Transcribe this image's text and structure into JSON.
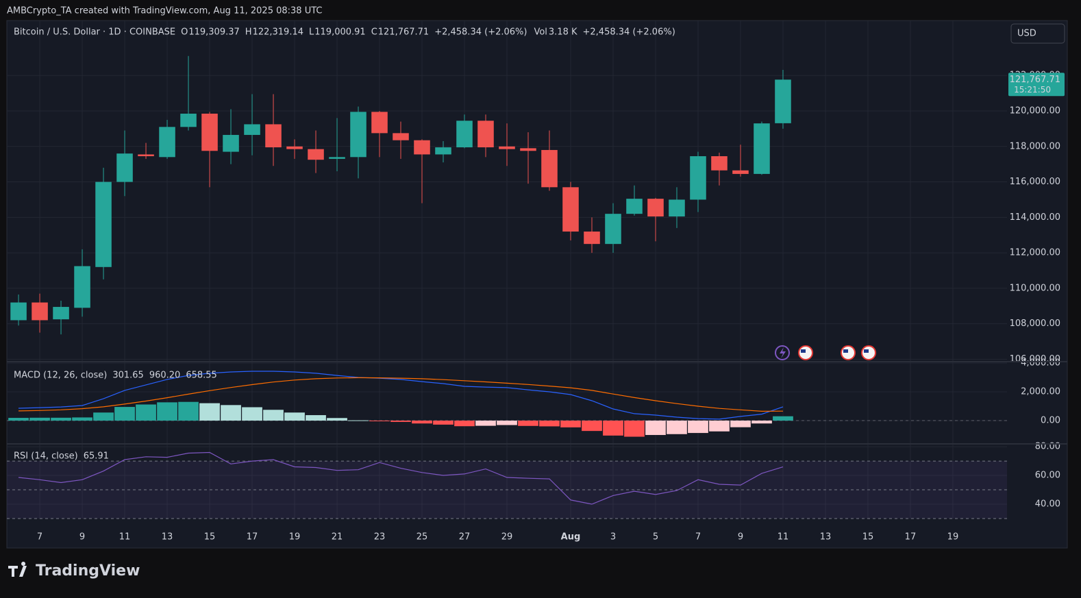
{
  "attribution": "AMBCrypto_TA created with TradingView.com, Aug 11, 2025 08:38 UTC",
  "currency_button": "USD",
  "footer_logo": "TradingView",
  "chart_data": [
    {
      "type": "candlestick",
      "title": "Bitcoin / U.S. Dollar · 1D · COINBASE",
      "ohlc_labels": [
        {
          "key": "O",
          "value": "119,309.37"
        },
        {
          "key": "H",
          "value": "122,319.14"
        },
        {
          "key": "L",
          "value": "119,000.91"
        },
        {
          "key": "C",
          "value": "121,767.71"
        }
      ],
      "change_label": "+2,458.34 (+2.06%)",
      "volume_key": "Vol",
      "volume_value": "3.18 K",
      "volume_change": "+2,458.34 (+2.06%)",
      "open": [
        108200,
        109200,
        108250,
        108900,
        111200,
        116000,
        117550,
        117400,
        119100,
        119850,
        117700,
        118650,
        119250,
        118000,
        117850,
        117300,
        117400,
        119950,
        118750,
        118350,
        117550,
        117950,
        119450,
        118000,
        117900,
        117800,
        115700,
        113200,
        112500,
        114200,
        115050,
        114050,
        115000,
        117450,
        116650,
        116450,
        119309.37
      ],
      "high": [
        109650,
        109700,
        109300,
        112200,
        116800,
        118900,
        118200,
        119500,
        123100,
        119950,
        120100,
        120950,
        120950,
        118400,
        118900,
        119600,
        120250,
        120000,
        119400,
        118400,
        118300,
        119800,
        119800,
        119300,
        118800,
        118900,
        116000,
        114000,
        114800,
        115800,
        115100,
        115700,
        117700,
        117650,
        118100,
        119400,
        122319.14
      ],
      "low": [
        107900,
        107500,
        107400,
        108400,
        110500,
        115200,
        117300,
        117300,
        118900,
        115700,
        117000,
        117500,
        116900,
        117300,
        116500,
        116600,
        116200,
        117400,
        117300,
        114800,
        117100,
        117900,
        117400,
        116900,
        115900,
        115500,
        112700,
        112000,
        112000,
        114100,
        112650,
        113400,
        114300,
        115800,
        116300,
        116400,
        119000.91
      ],
      "close": [
        109200,
        108200,
        108950,
        111250,
        116000,
        117600,
        117450,
        119100,
        119850,
        117750,
        118650,
        119250,
        117950,
        117850,
        117250,
        117400,
        119950,
        118750,
        118350,
        117550,
        117950,
        119450,
        117950,
        117850,
        117750,
        115700,
        113200,
        112500,
        114200,
        115050,
        114050,
        115000,
        117450,
        116650,
        116450,
        119300,
        121767.71
      ],
      "up_color": "#26a69a",
      "down_color": "#ef5350",
      "ylim": [
        105900,
        125100
      ],
      "yticks": [
        {
          "value": 106000,
          "label": "106,000.00"
        },
        {
          "value": 108000,
          "label": "108,000.00"
        },
        {
          "value": 110000,
          "label": "110,000.00"
        },
        {
          "value": 112000,
          "label": "112,000.00"
        },
        {
          "value": 114000,
          "label": "114,000.00"
        },
        {
          "value": 116000,
          "label": "116,000.00"
        },
        {
          "value": 118000,
          "label": "118,000.00"
        },
        {
          "value": 120000,
          "label": "120,000.00"
        },
        {
          "value": 122000,
          "label": "122,000.00"
        }
      ],
      "xlim": [
        -0.55,
        46.55
      ],
      "xticks": [
        {
          "value": 1,
          "label": "7"
        },
        {
          "value": 3,
          "label": "9"
        },
        {
          "value": 5,
          "label": "11"
        },
        {
          "value": 7,
          "label": "13"
        },
        {
          "value": 9,
          "label": "15"
        },
        {
          "value": 11,
          "label": "17"
        },
        {
          "value": 13,
          "label": "19"
        },
        {
          "value": 15,
          "label": "21"
        },
        {
          "value": 17,
          "label": "23"
        },
        {
          "value": 19,
          "label": "25"
        },
        {
          "value": 21,
          "label": "27"
        },
        {
          "value": 23,
          "label": "29"
        },
        {
          "value": 26,
          "label": "Aug"
        },
        {
          "value": 28,
          "label": "3"
        },
        {
          "value": 30,
          "label": "5"
        },
        {
          "value": 32,
          "label": "7"
        },
        {
          "value": 34,
          "label": "9"
        },
        {
          "value": 36,
          "label": "11"
        },
        {
          "value": 38,
          "label": "13"
        },
        {
          "value": 40,
          "label": "15"
        },
        {
          "value": 42,
          "label": "17"
        },
        {
          "value": 44,
          "label": "19"
        }
      ],
      "last_price_label": "121,767.71",
      "countdown": "15:21:50",
      "grid": true
    },
    {
      "type": "macd",
      "title": "MACD (12, 26, close)",
      "histogram": {
        "values": [
          190,
          200,
          200,
          220,
          560,
          950,
          1120,
          1270,
          1300,
          1210,
          1080,
          930,
          750,
          560,
          380,
          180,
          20,
          -20,
          -90,
          -200,
          -280,
          -390,
          -360,
          -310,
          -370,
          -400,
          -470,
          -720,
          -1040,
          -1120,
          -1000,
          -940,
          -860,
          -750,
          -460,
          -200,
          301.65
        ],
        "last_label": "301.65",
        "colors": [
          "#26a69a",
          "#b2dfdb",
          "#ff5252",
          "#ffcdd2"
        ]
      },
      "series": [
        {
          "color": "#2962ff",
          "last_label": "960.20",
          "values": [
            860,
            900,
            950,
            1050,
            1520,
            2100,
            2480,
            2860,
            3140,
            3290,
            3380,
            3430,
            3430,
            3380,
            3290,
            3140,
            3000,
            2950,
            2860,
            2710,
            2570,
            2380,
            2330,
            2290,
            2140,
            2000,
            1810,
            1380,
            810,
            480,
            380,
            240,
            140,
            100,
            290,
            450,
            960.2
          ]
        },
        {
          "color": "#ff6d00",
          "last_label": "658.55",
          "values": [
            670,
            700,
            750,
            830,
            960,
            1150,
            1360,
            1590,
            1840,
            2080,
            2300,
            2500,
            2680,
            2820,
            2910,
            2960,
            2980,
            2970,
            2950,
            2910,
            2850,
            2770,
            2690,
            2600,
            2510,
            2400,
            2280,
            2100,
            1850,
            1600,
            1380,
            1180,
            1000,
            850,
            750,
            650,
            658.55
          ]
        }
      ],
      "ylim": [
        -1570,
        4000
      ],
      "yticks": [
        {
          "value": 0,
          "label": "0.00"
        },
        {
          "value": 2000,
          "label": "2,000.00"
        },
        {
          "value": 4000,
          "label": "4,000.00"
        }
      ]
    },
    {
      "type": "rsi",
      "title": "RSI (14, close)",
      "series": [
        {
          "color": "#7e57c2",
          "last_label": "65.91",
          "values": [
            58.6,
            57,
            55,
            57,
            63,
            71,
            73,
            72.6,
            75.5,
            76,
            68,
            70,
            71,
            66,
            65.5,
            63.5,
            64,
            69,
            65,
            62,
            60,
            61,
            64.5,
            58.6,
            58,
            57.6,
            42.9,
            40,
            46,
            49,
            46.7,
            49.5,
            57,
            53.8,
            53.3,
            61.4,
            65.91
          ]
        }
      ],
      "levels": [
        70,
        50,
        30
      ],
      "ylim": [
        29.5,
        81
      ],
      "yticks": [
        {
          "value": 40,
          "label": "40.00"
        },
        {
          "value": 60,
          "label": "60.00"
        },
        {
          "value": 80,
          "label": "80.00"
        }
      ]
    }
  ]
}
